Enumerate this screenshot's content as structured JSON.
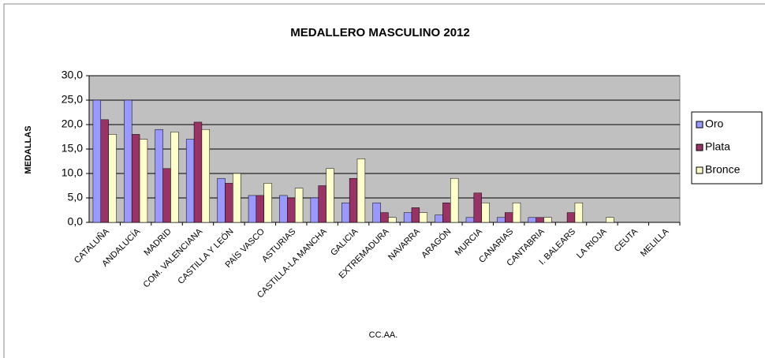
{
  "chart_data": {
    "type": "bar",
    "title": "MEDALLERO MASCULINO 2012",
    "x_label": "CC.AA.",
    "y_label": "MEDALLAS",
    "categories": [
      "CATALUÑA",
      "ANDALUCÍA",
      "MADRID",
      "COM. VALENCIANA",
      "CASTILLA Y LEÓN",
      "PAÍS VASCO",
      "ASTURIAS",
      "CASTILLA-LA MANCHA",
      "GALICIA",
      "EXTREMADURA",
      "NAVARRA",
      "ARAGÓN",
      "MURCIA",
      "CANARIAS",
      "CANTABRIA",
      "I. BALEARS",
      "LA RIOJA",
      "CEUTA",
      "MELILLA"
    ],
    "series": [
      {
        "name": "Oro",
        "color": "#9999ff",
        "values": [
          25,
          25,
          19,
          17,
          9,
          5.5,
          5.5,
          5,
          4,
          4,
          2,
          1.5,
          1,
          1,
          1,
          0,
          0,
          0,
          0
        ]
      },
      {
        "name": "Plata",
        "color": "#993366",
        "values": [
          21,
          18,
          11,
          20.5,
          8,
          5.5,
          5,
          7.5,
          9,
          2,
          3,
          4,
          6,
          2,
          1,
          2,
          0,
          0,
          0
        ]
      },
      {
        "name": "Bronce",
        "color": "#ffffcc",
        "values": [
          18,
          17,
          18.5,
          19,
          10,
          8,
          7,
          11,
          13,
          1,
          2,
          9,
          4,
          4,
          1,
          4,
          1,
          0,
          0
        ]
      }
    ],
    "ylim": [
      0,
      30
    ],
    "yticks": [
      {
        "value": 0,
        "label": "0,0"
      },
      {
        "value": 5,
        "label": "5,0"
      },
      {
        "value": 10,
        "label": "10,0"
      },
      {
        "value": 15,
        "label": "15,0"
      },
      {
        "value": 20,
        "label": "20,0"
      },
      {
        "value": 25,
        "label": "25,0"
      },
      {
        "value": 30,
        "label": "30,0"
      }
    ],
    "grid": true,
    "legend": "right",
    "plot_background": "#c0c0c0"
  }
}
